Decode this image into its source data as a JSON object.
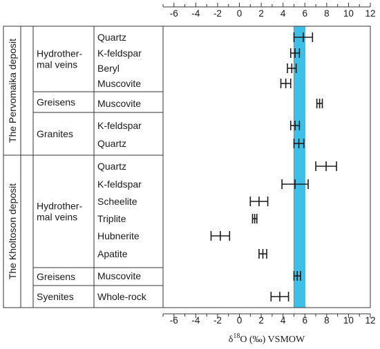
{
  "chart_data": {
    "type": "errorbar",
    "xlabel": {
      "delta": "δ",
      "sup": "18",
      "rest": "O (‰) VSMOW"
    },
    "xlim": [
      -7,
      12
    ],
    "xticks": [
      -6,
      -4,
      -2,
      0,
      2,
      4,
      6,
      8,
      10,
      12
    ],
    "band": {
      "from": 5.0,
      "to": 6.0,
      "color": "#3cc0e8"
    },
    "deposits": [
      {
        "name": "The Pervomaika deposit"
      },
      {
        "name": "The Kholtoson deposit"
      }
    ],
    "groups": [
      {
        "name": "Hydrother-\nmal veins",
        "deposit": 0
      },
      {
        "name": "Greisens",
        "deposit": 0
      },
      {
        "name": "Granites",
        "deposit": 0
      },
      {
        "name": "Hydrother-\nmal veins",
        "deposit": 1
      },
      {
        "name": "Greisens",
        "deposit": 1
      },
      {
        "name": "Syenites",
        "deposit": 1
      }
    ],
    "rows": [
      {
        "mineral": "Quartz",
        "group": 0,
        "min": 5.0,
        "max": 6.7
      },
      {
        "mineral": "K-feldspar",
        "group": 0,
        "min": 4.7,
        "max": 5.5
      },
      {
        "mineral": "Beryl",
        "group": 0,
        "min": 4.4,
        "max": 5.2
      },
      {
        "mineral": "Muscovite",
        "group": 0,
        "min": 3.8,
        "max": 4.7
      },
      {
        "mineral": "Muscovite",
        "group": 1,
        "min": 7.1,
        "max": 7.6
      },
      {
        "mineral": "K-feldspar",
        "group": 2,
        "min": 4.7,
        "max": 5.5
      },
      {
        "mineral": "Quartz",
        "group": 2,
        "min": 5.0,
        "max": 5.9
      },
      {
        "mineral": "Quartz",
        "group": 3,
        "min": 7.0,
        "max": 8.9
      },
      {
        "mineral": "K-feldspar",
        "group": 3,
        "min": 3.9,
        "max": 6.3
      },
      {
        "mineral": "Scheelite",
        "group": 3,
        "min": 1.0,
        "max": 2.6
      },
      {
        "mineral": "Triplite",
        "group": 3,
        "min": 1.2,
        "max": 1.6
      },
      {
        "mineral": "Hubnerite",
        "group": 3,
        "min": -2.6,
        "max": -0.9
      },
      {
        "mineral": "Apatite",
        "group": 3,
        "min": 1.8,
        "max": 2.5
      },
      {
        "mineral": "Muscovite",
        "group": 4,
        "min": 5.0,
        "max": 5.6
      },
      {
        "mineral": "Whole-rock",
        "group": 5,
        "min": 2.9,
        "max": 4.5
      }
    ]
  }
}
